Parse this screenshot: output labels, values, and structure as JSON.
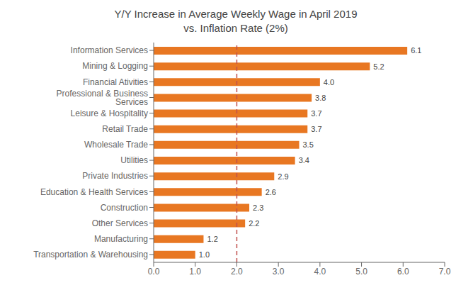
{
  "chart_data": {
    "type": "bar",
    "orientation": "horizontal",
    "title": "Y/Y Increase in Average Weekly Wage in April 2019\nvs. Inflation Rate (2%)",
    "categories": [
      "Transportation & Warehousing",
      "Manufacturing",
      "Other Services",
      "Construction",
      "Education & Health Services",
      "Private Industries",
      "Utilities",
      "Wholesale Trade",
      "Retail Trade",
      "Leisure & Hospitality",
      "Professional & Business Services",
      "Financial Ativities",
      "Mining & Logging",
      "Information Services"
    ],
    "values": [
      1.0,
      1.2,
      2.2,
      2.3,
      2.6,
      2.9,
      3.4,
      3.5,
      3.7,
      3.7,
      3.8,
      4.0,
      5.2,
      6.1
    ],
    "value_labels": [
      "1.0",
      "1.2",
      "2.2",
      "2.3",
      "2.6",
      "2.9",
      "3.4",
      "3.5",
      "3.7",
      "3.7",
      "3.8",
      "4.0",
      "5.2",
      "6.1"
    ],
    "data_labels": true,
    "color": "#E87722",
    "reference_line": {
      "value": 2.0,
      "color": "#C0504D",
      "line_style": "dashed"
    },
    "xlim": [
      0,
      7.0
    ],
    "xticks": [
      {
        "value": 0,
        "label": "0.0"
      },
      {
        "value": 1,
        "label": "1.0"
      },
      {
        "value": 2,
        "label": "2.0"
      },
      {
        "value": 3,
        "label": "3.0"
      },
      {
        "value": 4,
        "label": "4.0"
      },
      {
        "value": 5,
        "label": "5.0"
      },
      {
        "value": 6,
        "label": "6.0"
      },
      {
        "value": 7,
        "label": "7.0"
      }
    ],
    "grid": false
  }
}
